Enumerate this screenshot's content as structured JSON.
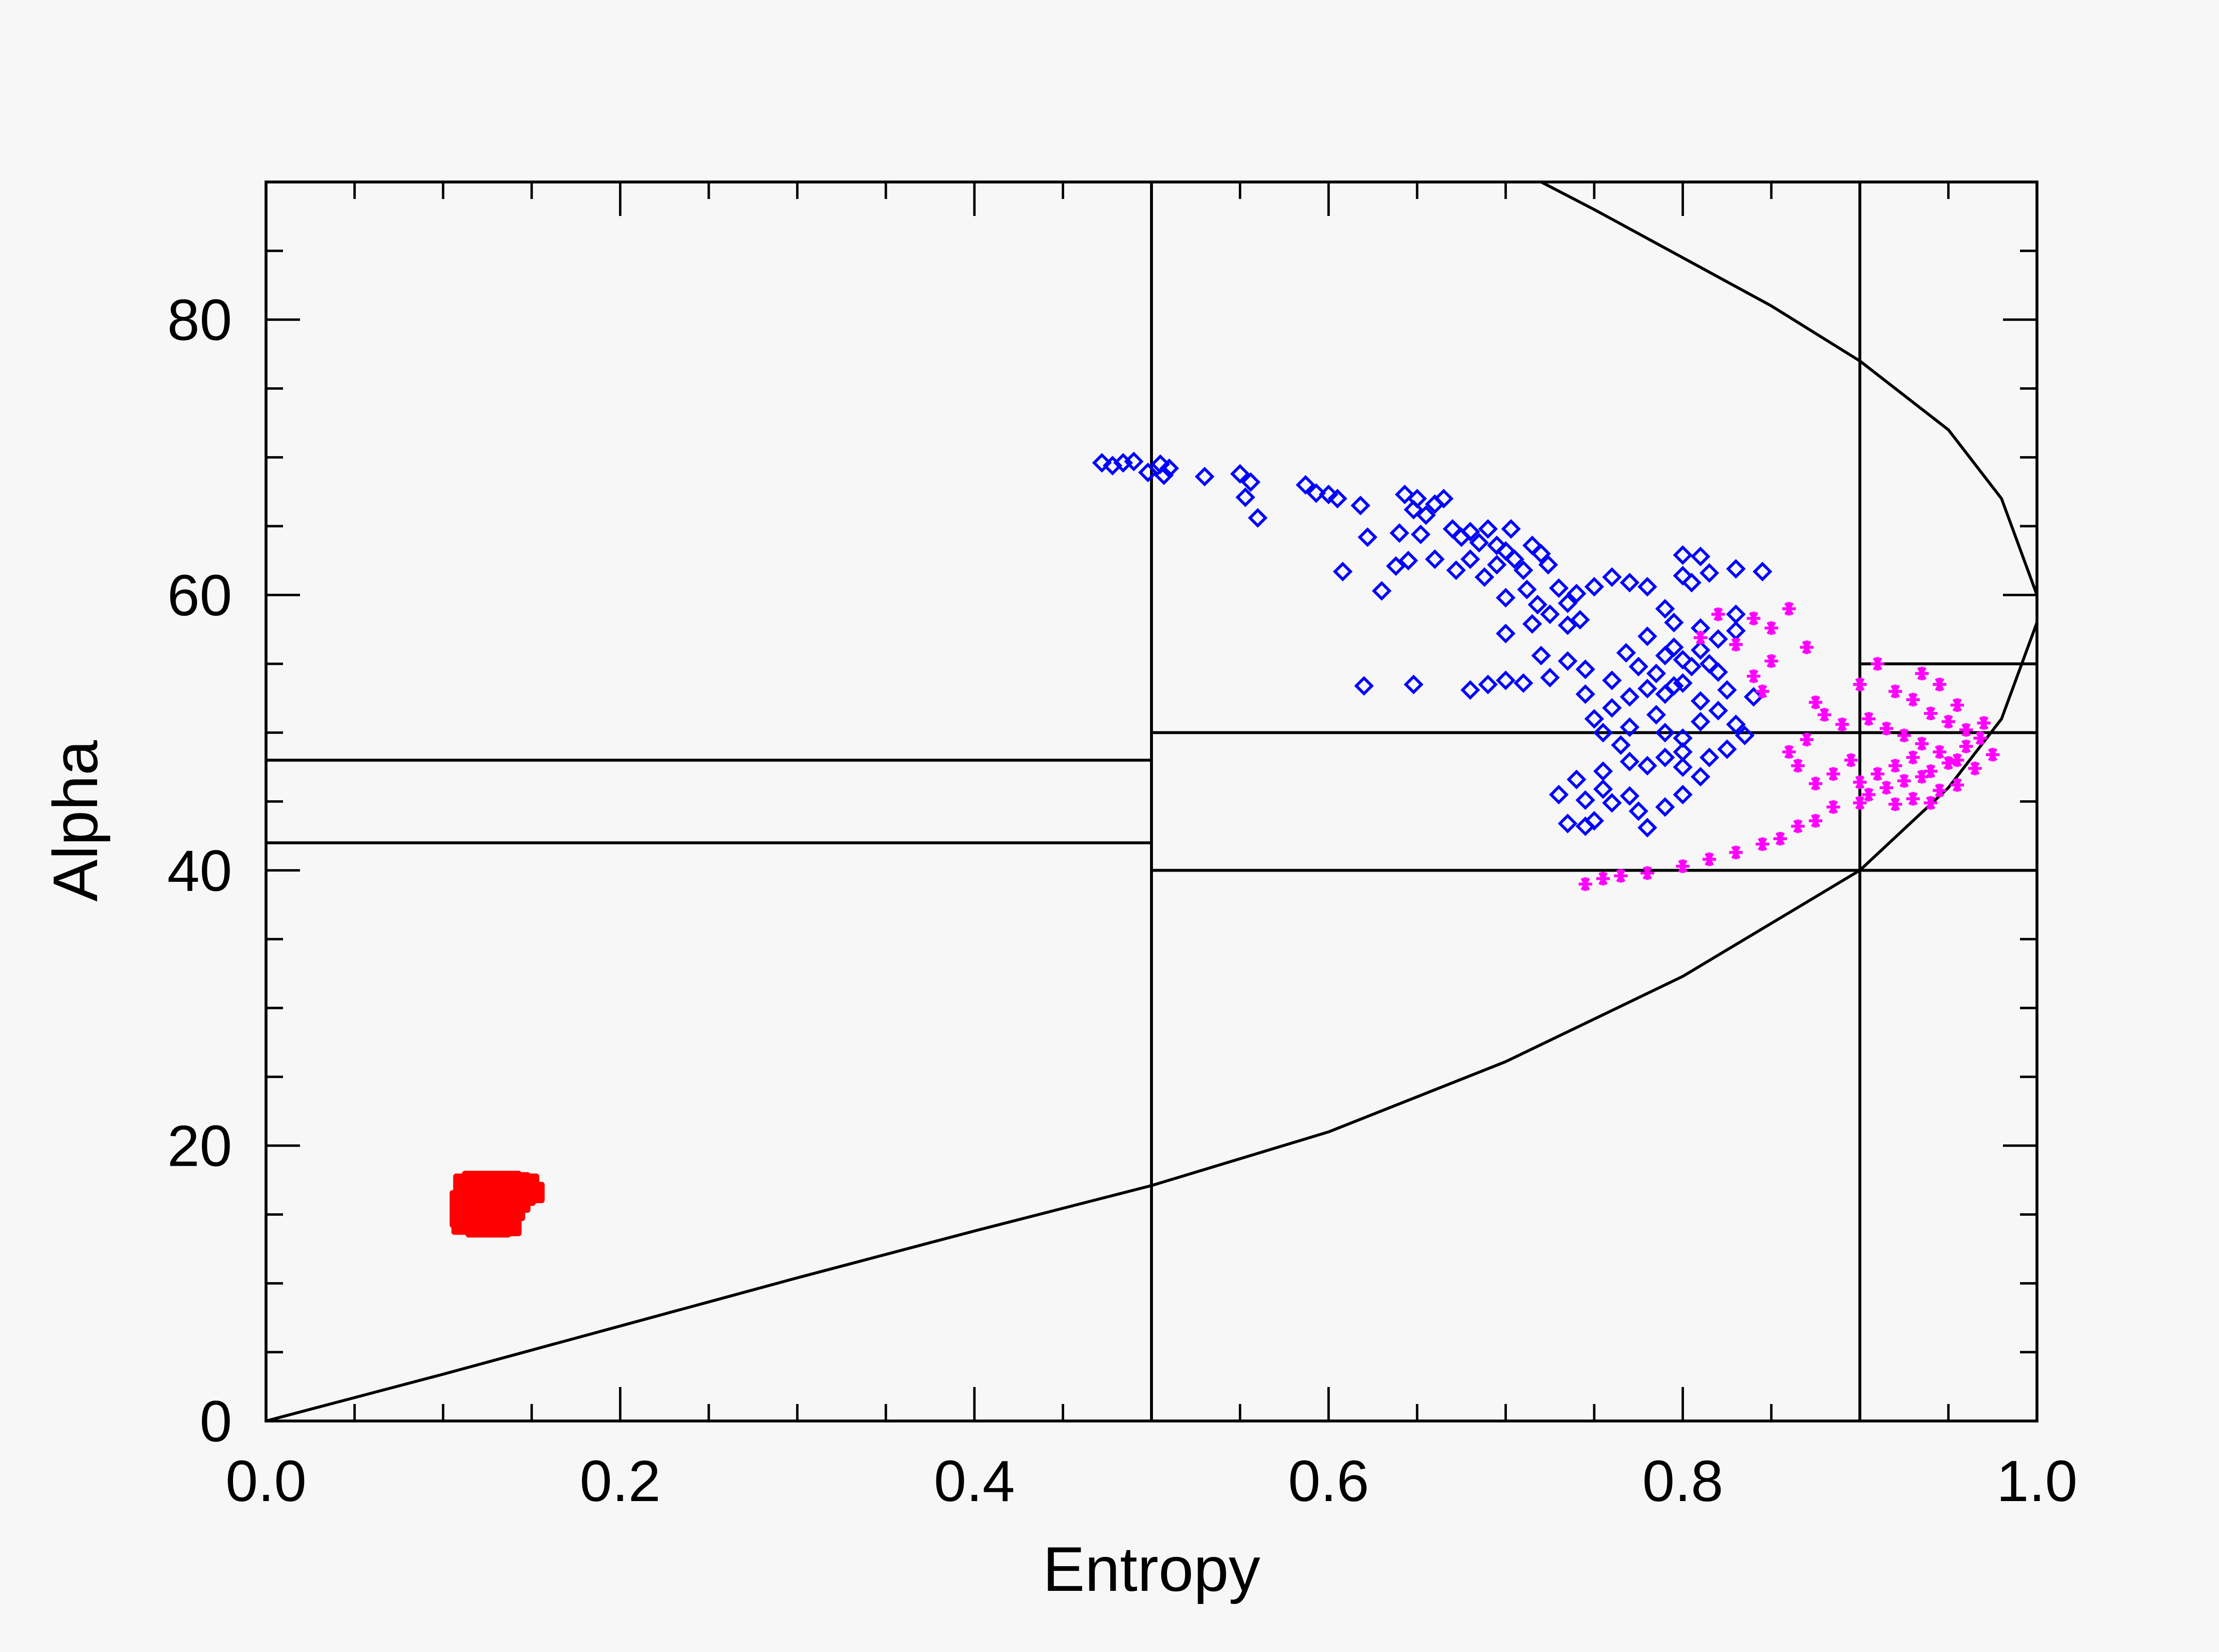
{
  "chart_data": {
    "type": "scatter",
    "title": "",
    "xlabel": "Entropy",
    "ylabel": "Alpha",
    "xlim": [
      0.0,
      1.0
    ],
    "ylim": [
      0,
      90
    ],
    "x_ticks": [
      0.0,
      0.2,
      0.4,
      0.6,
      0.8,
      1.0
    ],
    "x_tick_labels": [
      "0.0",
      "0.2",
      "0.4",
      "0.6",
      "0.8",
      "1.0"
    ],
    "y_ticks": [
      0,
      20,
      40,
      60,
      80
    ],
    "y_tick_labels": [
      "0",
      "20",
      "40",
      "60",
      "80"
    ],
    "grid": false,
    "legend": null,
    "boundary_curve": {
      "lower": [
        [
          0.0,
          0.0
        ],
        [
          0.1,
          3.4
        ],
        [
          0.2,
          6.9
        ],
        [
          0.3,
          10.4
        ],
        [
          0.4,
          13.8
        ],
        [
          0.5,
          17.1
        ],
        [
          0.6,
          21.0
        ],
        [
          0.7,
          26.1
        ],
        [
          0.8,
          32.3
        ],
        [
          0.9,
          40.0
        ],
        [
          0.95,
          46.0
        ],
        [
          0.98,
          51.0
        ],
        [
          1.0,
          58.0
        ]
      ],
      "upper": [
        [
          1.0,
          60.0
        ],
        [
          0.98,
          67.0
        ],
        [
          0.95,
          72.0
        ],
        [
          0.9,
          77.0
        ],
        [
          0.85,
          81.0
        ],
        [
          0.8,
          84.5
        ],
        [
          0.75,
          88.0
        ],
        [
          0.72,
          90.0
        ]
      ]
    },
    "zone_lines": {
      "vertical": [
        {
          "x": 0.5,
          "y": [
            0,
            90
          ]
        },
        {
          "x": 0.9,
          "y": [
            0,
            90
          ]
        }
      ],
      "horizontal": [
        {
          "y": 48,
          "x": [
            0.0,
            0.5
          ]
        },
        {
          "y": 42,
          "x": [
            0.0,
            0.5
          ]
        },
        {
          "y": 50,
          "x": [
            0.5,
            1.0
          ]
        },
        {
          "y": 40,
          "x": [
            0.5,
            1.0
          ]
        },
        {
          "y": 55,
          "x": [
            0.9,
            1.0
          ]
        }
      ]
    },
    "series": [
      {
        "marker": "cluster",
        "color": "#ff0000",
        "points": [
          [
            0.115,
            17.2
          ],
          [
            0.12,
            17.4
          ],
          [
            0.125,
            17.3
          ],
          [
            0.13,
            17.2
          ],
          [
            0.135,
            17.4
          ],
          [
            0.14,
            17.3
          ],
          [
            0.145,
            17.2
          ],
          [
            0.148,
            16.6
          ],
          [
            0.115,
            16.6
          ],
          [
            0.12,
            16.8
          ],
          [
            0.125,
            16.9
          ],
          [
            0.13,
            16.7
          ],
          [
            0.135,
            16.8
          ],
          [
            0.14,
            16.9
          ],
          [
            0.143,
            16.4
          ],
          [
            0.113,
            16.0
          ],
          [
            0.118,
            16.2
          ],
          [
            0.123,
            16.3
          ],
          [
            0.128,
            16.1
          ],
          [
            0.133,
            16.4
          ],
          [
            0.138,
            16.2
          ],
          [
            0.14,
            15.9
          ],
          [
            0.114,
            15.4
          ],
          [
            0.119,
            15.6
          ],
          [
            0.124,
            15.5
          ],
          [
            0.129,
            15.7
          ],
          [
            0.134,
            15.6
          ],
          [
            0.137,
            15.3
          ],
          [
            0.113,
            14.8
          ],
          [
            0.118,
            14.9
          ],
          [
            0.123,
            14.8
          ],
          [
            0.128,
            15.0
          ],
          [
            0.132,
            14.9
          ],
          [
            0.135,
            14.7
          ],
          [
            0.114,
            14.3
          ],
          [
            0.12,
            14.4
          ],
          [
            0.126,
            14.3
          ],
          [
            0.131,
            14.4
          ],
          [
            0.135,
            14.2
          ],
          [
            0.122,
            14.1
          ],
          [
            0.129,
            14.1
          ]
        ]
      },
      {
        "marker": "diamond",
        "color": "#0000ff",
        "points": [
          [
            0.472,
            69.6
          ],
          [
            0.478,
            69.4
          ],
          [
            0.484,
            69.6
          ],
          [
            0.49,
            69.7
          ],
          [
            0.498,
            68.9
          ],
          [
            0.505,
            69.5
          ],
          [
            0.51,
            69.2
          ],
          [
            0.507,
            68.7
          ],
          [
            0.53,
            68.6
          ],
          [
            0.55,
            68.8
          ],
          [
            0.556,
            68.2
          ],
          [
            0.553,
            67.1
          ],
          [
            0.56,
            65.6
          ],
          [
            0.587,
            68.0
          ],
          [
            0.593,
            67.4
          ],
          [
            0.6,
            67.3
          ],
          [
            0.605,
            67.0
          ],
          [
            0.618,
            66.5
          ],
          [
            0.622,
            64.2
          ],
          [
            0.608,
            61.7
          ],
          [
            0.63,
            60.3
          ],
          [
            0.638,
            62.1
          ],
          [
            0.645,
            62.5
          ],
          [
            0.64,
            64.5
          ],
          [
            0.643,
            67.3
          ],
          [
            0.65,
            67.0
          ],
          [
            0.648,
            66.2
          ],
          [
            0.655,
            65.8
          ],
          [
            0.66,
            66.6
          ],
          [
            0.665,
            67.0
          ],
          [
            0.652,
            64.4
          ],
          [
            0.67,
            64.8
          ],
          [
            0.675,
            64.2
          ],
          [
            0.68,
            64.6
          ],
          [
            0.685,
            63.8
          ],
          [
            0.69,
            64.8
          ],
          [
            0.695,
            63.6
          ],
          [
            0.66,
            62.6
          ],
          [
            0.672,
            61.8
          ],
          [
            0.68,
            62.6
          ],
          [
            0.688,
            61.3
          ],
          [
            0.695,
            62.2
          ],
          [
            0.7,
            63.2
          ],
          [
            0.703,
            64.8
          ],
          [
            0.705,
            62.6
          ],
          [
            0.71,
            61.8
          ],
          [
            0.715,
            63.6
          ],
          [
            0.72,
            63.0
          ],
          [
            0.724,
            62.2
          ],
          [
            0.712,
            60.4
          ],
          [
            0.7,
            59.8
          ],
          [
            0.718,
            59.3
          ],
          [
            0.73,
            60.5
          ],
          [
            0.735,
            59.4
          ],
          [
            0.74,
            60.1
          ],
          [
            0.725,
            58.6
          ],
          [
            0.715,
            57.9
          ],
          [
            0.7,
            57.2
          ],
          [
            0.735,
            57.8
          ],
          [
            0.742,
            58.2
          ],
          [
            0.75,
            60.6
          ],
          [
            0.76,
            61.3
          ],
          [
            0.77,
            60.9
          ],
          [
            0.78,
            60.6
          ],
          [
            0.8,
            62.9
          ],
          [
            0.81,
            62.8
          ],
          [
            0.8,
            61.4
          ],
          [
            0.815,
            61.6
          ],
          [
            0.83,
            61.9
          ],
          [
            0.845,
            61.7
          ],
          [
            0.805,
            60.9
          ],
          [
            0.79,
            59.0
          ],
          [
            0.795,
            58.0
          ],
          [
            0.81,
            57.6
          ],
          [
            0.82,
            56.8
          ],
          [
            0.83,
            57.4
          ],
          [
            0.83,
            58.6
          ],
          [
            0.78,
            57.0
          ],
          [
            0.768,
            55.8
          ],
          [
            0.775,
            54.8
          ],
          [
            0.785,
            54.3
          ],
          [
            0.79,
            55.6
          ],
          [
            0.795,
            56.2
          ],
          [
            0.8,
            55.3
          ],
          [
            0.805,
            54.8
          ],
          [
            0.81,
            56.0
          ],
          [
            0.815,
            55.0
          ],
          [
            0.82,
            54.4
          ],
          [
            0.8,
            53.6
          ],
          [
            0.79,
            52.8
          ],
          [
            0.78,
            53.2
          ],
          [
            0.77,
            52.6
          ],
          [
            0.76,
            53.8
          ],
          [
            0.745,
            54.6
          ],
          [
            0.735,
            55.2
          ],
          [
            0.725,
            54.0
          ],
          [
            0.72,
            55.6
          ],
          [
            0.71,
            53.6
          ],
          [
            0.7,
            53.8
          ],
          [
            0.69,
            53.5
          ],
          [
            0.68,
            53.1
          ],
          [
            0.648,
            53.5
          ],
          [
            0.62,
            53.4
          ],
          [
            0.745,
            52.8
          ],
          [
            0.76,
            51.8
          ],
          [
            0.75,
            51.0
          ],
          [
            0.755,
            50.0
          ],
          [
            0.77,
            50.4
          ],
          [
            0.785,
            51.3
          ],
          [
            0.79,
            50.0
          ],
          [
            0.8,
            49.6
          ],
          [
            0.81,
            50.8
          ],
          [
            0.82,
            51.6
          ],
          [
            0.83,
            50.6
          ],
          [
            0.84,
            52.6
          ],
          [
            0.835,
            49.8
          ],
          [
            0.8,
            48.6
          ],
          [
            0.79,
            48.2
          ],
          [
            0.78,
            47.6
          ],
          [
            0.77,
            47.9
          ],
          [
            0.765,
            49.1
          ],
          [
            0.755,
            47.2
          ],
          [
            0.74,
            46.6
          ],
          [
            0.73,
            45.5
          ],
          [
            0.745,
            45.1
          ],
          [
            0.755,
            45.9
          ],
          [
            0.76,
            44.9
          ],
          [
            0.77,
            45.4
          ],
          [
            0.775,
            44.3
          ],
          [
            0.79,
            44.6
          ],
          [
            0.8,
            45.5
          ],
          [
            0.81,
            46.8
          ],
          [
            0.815,
            48.2
          ],
          [
            0.825,
            48.8
          ],
          [
            0.735,
            43.4
          ],
          [
            0.745,
            43.2
          ],
          [
            0.75,
            43.6
          ],
          [
            0.78,
            43.1
          ],
          [
            0.8,
            47.5
          ],
          [
            0.825,
            53.1
          ],
          [
            0.81,
            52.3
          ],
          [
            0.795,
            53.4
          ]
        ]
      },
      {
        "marker": "asterisk",
        "color": "#ff00ff",
        "points": [
          [
            0.745,
            39.0
          ],
          [
            0.755,
            39.4
          ],
          [
            0.765,
            39.6
          ],
          [
            0.78,
            39.8
          ],
          [
            0.8,
            40.3
          ],
          [
            0.815,
            40.8
          ],
          [
            0.83,
            41.3
          ],
          [
            0.845,
            41.9
          ],
          [
            0.855,
            42.3
          ],
          [
            0.865,
            43.2
          ],
          [
            0.875,
            43.6
          ],
          [
            0.885,
            44.6
          ],
          [
            0.9,
            44.9
          ],
          [
            0.875,
            46.3
          ],
          [
            0.865,
            47.6
          ],
          [
            0.86,
            48.6
          ],
          [
            0.87,
            49.5
          ],
          [
            0.89,
            50.6
          ],
          [
            0.88,
            51.3
          ],
          [
            0.875,
            52.2
          ],
          [
            0.905,
            51.0
          ],
          [
            0.915,
            50.3
          ],
          [
            0.925,
            49.8
          ],
          [
            0.935,
            49.2
          ],
          [
            0.945,
            48.6
          ],
          [
            0.955,
            48.0
          ],
          [
            0.965,
            47.4
          ],
          [
            0.92,
            53.0
          ],
          [
            0.91,
            55.0
          ],
          [
            0.93,
            52.4
          ],
          [
            0.94,
            51.4
          ],
          [
            0.95,
            50.8
          ],
          [
            0.96,
            50.2
          ],
          [
            0.968,
            49.6
          ],
          [
            0.9,
            46.4
          ],
          [
            0.91,
            47.0
          ],
          [
            0.92,
            47.6
          ],
          [
            0.93,
            48.2
          ],
          [
            0.94,
            47.2
          ],
          [
            0.95,
            47.8
          ],
          [
            0.96,
            49.0
          ],
          [
            0.905,
            45.5
          ],
          [
            0.915,
            46.0
          ],
          [
            0.925,
            46.5
          ],
          [
            0.935,
            46.8
          ],
          [
            0.945,
            45.8
          ],
          [
            0.955,
            46.2
          ],
          [
            0.92,
            44.8
          ],
          [
            0.93,
            45.2
          ],
          [
            0.94,
            44.9
          ],
          [
            0.85,
            57.6
          ],
          [
            0.84,
            58.3
          ],
          [
            0.86,
            59.0
          ],
          [
            0.83,
            56.4
          ],
          [
            0.85,
            55.2
          ],
          [
            0.87,
            56.2
          ],
          [
            0.84,
            54.1
          ],
          [
            0.845,
            53.0
          ],
          [
            0.82,
            58.6
          ],
          [
            0.81,
            56.9
          ],
          [
            0.975,
            48.4
          ],
          [
            0.97,
            50.7
          ],
          [
            0.955,
            52.0
          ],
          [
            0.945,
            53.5
          ],
          [
            0.935,
            54.3
          ],
          [
            0.9,
            53.5
          ],
          [
            0.895,
            48.0
          ],
          [
            0.885,
            47.0
          ]
        ]
      }
    ]
  }
}
